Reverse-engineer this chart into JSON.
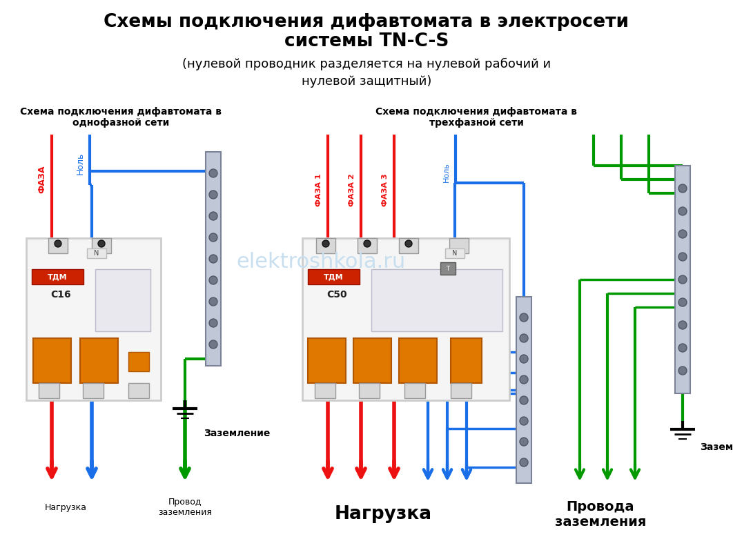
{
  "title_line1": "Схемы подключения дифавтомата в электросети",
  "title_line2": "системы TN-C-S",
  "title_line3": "(нулевой проводник разделяется на нулевой рабочий и",
  "title_line4": "нулевой защитный)",
  "subtitle_left": "Схема подключения дифавтомата в\nоднофазной сети",
  "subtitle_right": "Схема подключения дифавтомата в\nтрехфазной сети",
  "label_faza_left": "ФАЗА",
  "label_nol_left": "Ноль",
  "label_faza1": "ФАЗА 1",
  "label_faza2": "ФАЗА 2",
  "label_faza3": "ФАЗА 3",
  "label_nol_right": "Ноль",
  "label_zazemlenie_left": "Заземление",
  "label_zazemlenie_right": "Заземление",
  "label_nagruzka_left": "Нагрузка",
  "label_provod_left": "Провод\nзаземления",
  "label_nagruzka_right": "Нагрузка",
  "label_provoda_right": "Провода\nзаземления",
  "watermark": "elektroshkola.ru",
  "bg_color": "#ffffff",
  "color_red": "#ee1111",
  "color_blue": "#1a6fe8",
  "color_green": "#009900",
  "color_title": "#000000",
  "color_watermark": "#c8dff0"
}
